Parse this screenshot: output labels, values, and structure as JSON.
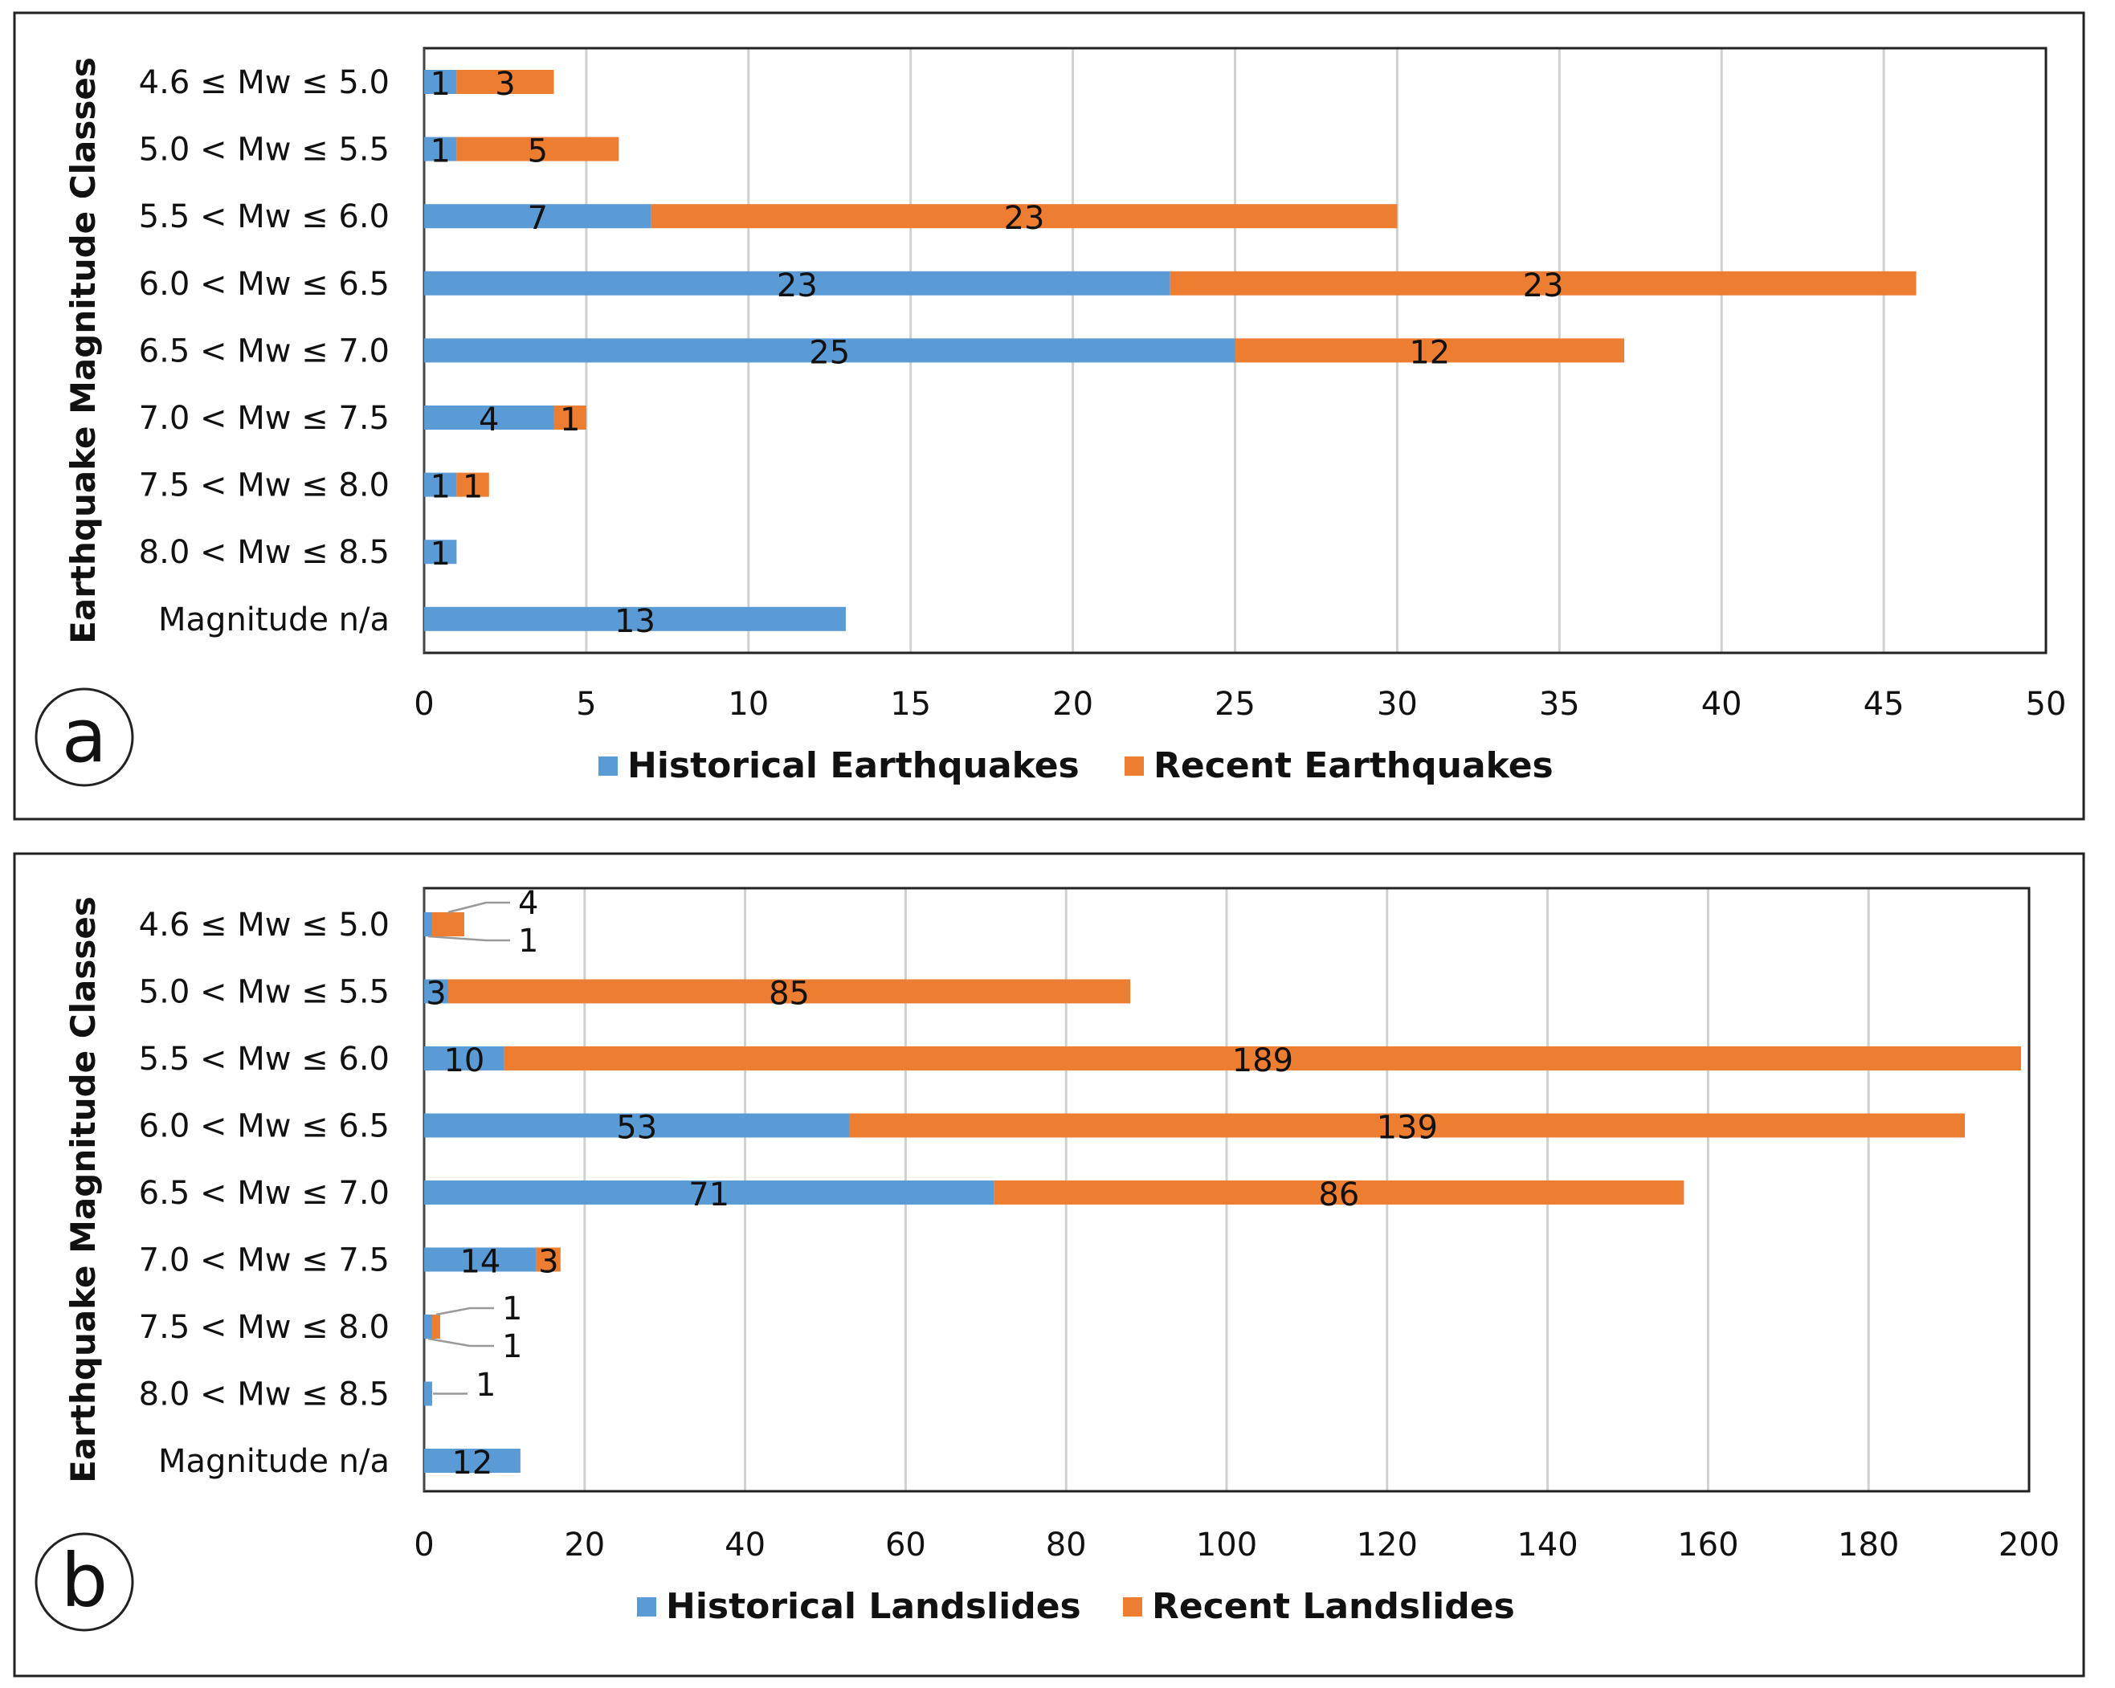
{
  "chart_data": [
    {
      "panel": "a",
      "type": "bar",
      "orientation": "horizontal",
      "stacked": true,
      "ylabel": "Earthquake Magnitude Classes",
      "categories": [
        "4.6 ≤ Mw ≤ 5.0",
        "5.0 < Mw ≤ 5.5",
        "5.5 < Mw ≤ 6.0",
        "6.0 < Mw ≤ 6.5",
        "6.5 < Mw ≤ 7.0",
        "7.0 < Mw ≤ 7.5",
        "7.5  < Mw ≤ 8.0",
        "8.0 < Mw ≤  8.5",
        "Magnitude n/a"
      ],
      "series": [
        {
          "name": "Historical Earthquakes",
          "color": "#5B9BD5",
          "values": [
            1,
            1,
            7,
            23,
            25,
            4,
            1,
            1,
            13
          ]
        },
        {
          "name": "Recent Earthquakes",
          "color": "#ED7D31",
          "values": [
            3,
            5,
            23,
            23,
            12,
            1,
            1,
            0,
            0
          ]
        }
      ],
      "xlim": [
        0,
        50
      ],
      "xticks": [
        0,
        5,
        10,
        15,
        20,
        25,
        30,
        35,
        40,
        45,
        50
      ],
      "grid": true,
      "legend_position": "bottom"
    },
    {
      "panel": "b",
      "type": "bar",
      "orientation": "horizontal",
      "stacked": true,
      "ylabel": "Earthquake Magnitude Classes",
      "categories": [
        "4.6 ≤ Mw ≤ 5.0",
        "5.0 < Mw ≤ 5.5",
        "5.5 < Mw ≤ 6.0",
        "6.0 < Mw ≤ 6.5",
        "6.5 < Mw ≤ 7.0",
        "7.0 < Mw ≤ 7.5",
        "7.5  < Mw ≤ 8.0",
        "8.0 < Mw ≤  8.5",
        "Magnitude n/a"
      ],
      "series": [
        {
          "name": "Historical Landslides",
          "color": "#5B9BD5",
          "values": [
            1,
            3,
            10,
            53,
            71,
            14,
            1,
            1,
            12
          ]
        },
        {
          "name": "Recent Landslides",
          "color": "#ED7D31",
          "values": [
            4,
            85,
            189,
            139,
            86,
            3,
            1,
            0,
            0
          ]
        }
      ],
      "xlim": [
        0,
        200
      ],
      "xticks": [
        0,
        20,
        40,
        60,
        80,
        100,
        120,
        140,
        160,
        180,
        200
      ],
      "grid": true,
      "legend_position": "bottom"
    }
  ]
}
